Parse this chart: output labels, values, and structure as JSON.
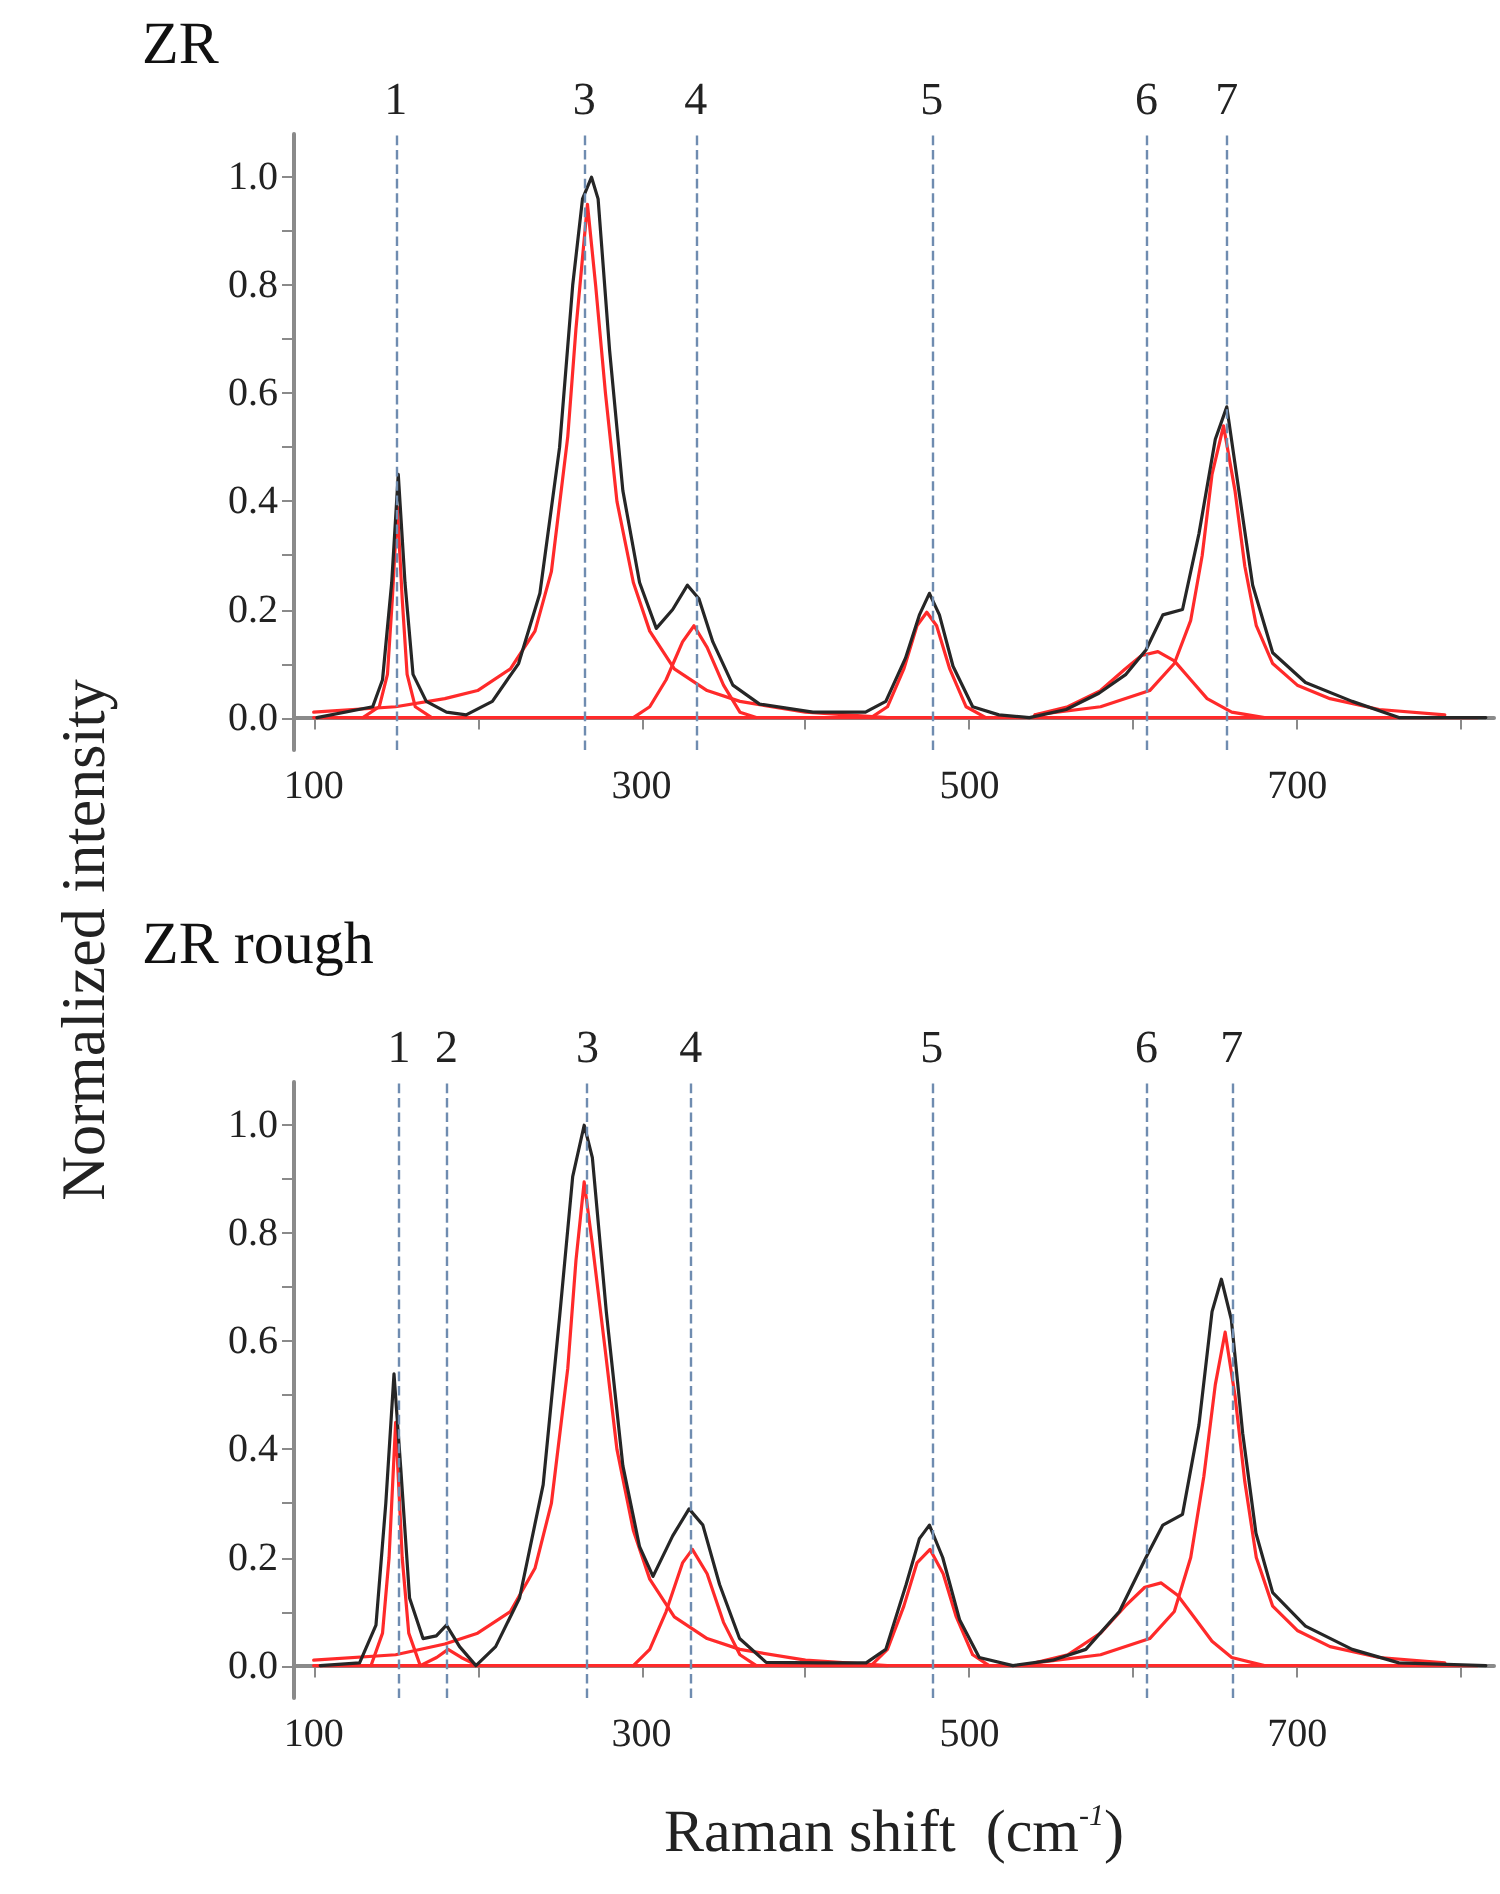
{
  "chart_data": [
    {
      "type": "line",
      "title": "ZR",
      "ylabel": "Normalized intensity",
      "marker": "none",
      "xlim": [
        88,
        820
      ],
      "xticks": [
        100,
        {
          "value": 200,
          "label": null
        },
        300,
        {
          "value": 400,
          "label": null
        },
        500,
        {
          "value": 600,
          "label": null
        },
        700,
        {
          "value": 800,
          "label": null
        }
      ],
      "ylim": [
        -0.06,
        1.08
      ],
      "yticks": [
        {
          "value": 0,
          "label": "0.0"
        },
        {
          "value": 0.1,
          "label": null
        },
        {
          "value": 0.2,
          "label": "0.2"
        },
        {
          "value": 0.3,
          "label": null
        },
        {
          "value": 0.4,
          "label": "0.4"
        },
        {
          "value": 0.5,
          "label": null
        },
        {
          "value": 0.6,
          "label": "0.6"
        },
        {
          "value": 0.7,
          "label": null
        },
        {
          "value": 0.8,
          "label": "0.8"
        },
        {
          "value": 0.9,
          "label": null
        },
        {
          "value": 1,
          "label": "1.0"
        }
      ],
      "ref_lines": [
        {
          "axis": "x",
          "value": 150,
          "color": "#6f8cb0",
          "line_style": "dashed"
        },
        {
          "axis": "x",
          "value": 265,
          "color": "#6f8cb0",
          "line_style": "dashed"
        },
        {
          "axis": "x",
          "value": 333,
          "color": "#6f8cb0",
          "line_style": "dashed"
        },
        {
          "axis": "x",
          "value": 477,
          "color": "#6f8cb0",
          "line_style": "dashed"
        },
        {
          "axis": "x",
          "value": 608,
          "color": "#6f8cb0",
          "line_style": "dashed"
        },
        {
          "axis": "x",
          "value": 657,
          "color": "#6f8cb0",
          "line_style": "dashed"
        }
      ],
      "annotations": [
        "1",
        "3",
        "4",
        "5",
        "6",
        "7"
      ],
      "series": [
        {
          "color": "#ff2a2a",
          "x": [
            100,
            810
          ],
          "values": [
            0,
            0
          ]
        },
        {
          "color": "#ff2a2a",
          "x": [
            130,
            140,
            145,
            148,
            151,
            154,
            157,
            162,
            172
          ],
          "values": [
            0,
            0.02,
            0.08,
            0.22,
            0.39,
            0.22,
            0.08,
            0.02,
            0
          ]
        },
        {
          "color": "#ff2a2a",
          "x": [
            100,
            150,
            180,
            200,
            220,
            235,
            245,
            255,
            260,
            267,
            272,
            278,
            285,
            295,
            305,
            320,
            340,
            360,
            400,
            450
          ],
          "values": [
            0.01,
            0.02,
            0.035,
            0.05,
            0.09,
            0.16,
            0.27,
            0.52,
            0.72,
            0.95,
            0.8,
            0.6,
            0.4,
            0.25,
            0.16,
            0.09,
            0.05,
            0.03,
            0.01,
            0
          ]
        },
        {
          "color": "#ff2a2a",
          "x": [
            295,
            305,
            315,
            325,
            332,
            340,
            350,
            360,
            370
          ],
          "values": [
            0,
            0.02,
            0.07,
            0.14,
            0.17,
            0.13,
            0.06,
            0.01,
            0
          ]
        },
        {
          "color": "#ff2a2a",
          "x": [
            440,
            450,
            460,
            468,
            474,
            480,
            488,
            498,
            510
          ],
          "values": [
            0,
            0.02,
            0.09,
            0.17,
            0.195,
            0.17,
            0.09,
            0.02,
            0
          ]
        },
        {
          "color": "#ff2a2a",
          "x": [
            540,
            560,
            580,
            595,
            605,
            615,
            625,
            635,
            645,
            660,
            680
          ],
          "values": [
            0.005,
            0.02,
            0.05,
            0.09,
            0.115,
            0.122,
            0.105,
            0.07,
            0.035,
            0.01,
            0
          ]
        },
        {
          "color": "#ff2a2a",
          "x": [
            540,
            580,
            610,
            625,
            635,
            642,
            648,
            655,
            662,
            668,
            675,
            685,
            700,
            720,
            750,
            790
          ],
          "values": [
            0.005,
            0.02,
            0.05,
            0.1,
            0.18,
            0.3,
            0.45,
            0.54,
            0.42,
            0.28,
            0.17,
            0.1,
            0.06,
            0.035,
            0.015,
            0.005
          ]
        },
        {
          "color": "#262626",
          "x": [
            102,
            136,
            142,
            147.6,
            151.6,
            155.7,
            160.6,
            168.7,
            181,
            193,
            209,
            225,
            238,
            250,
            258,
            264,
            269.5,
            273.5,
            280.5,
            288.6,
            298.8,
            309,
            319,
            328,
            335,
            343.5,
            355.7,
            372,
            404.5,
            436.6,
            449,
            461,
            469.5,
            475.6,
            481.7,
            490,
            502,
            518,
            536.6,
            559,
            579,
            595.5,
            607.7,
            618,
            630,
            640,
            650,
            657,
            664.6,
            672.8,
            685,
            705,
            733.5,
            762,
            802,
            815
          ],
          "values": [
            0,
            0.02,
            0.07,
            0.25,
            0.45,
            0.25,
            0.08,
            0.03,
            0.01,
            0.005,
            0.03,
            0.1,
            0.23,
            0.5,
            0.8,
            0.96,
            1,
            0.96,
            0.68,
            0.42,
            0.25,
            0.165,
            0.2,
            0.245,
            0.22,
            0.14,
            0.06,
            0.025,
            0.01,
            0.01,
            0.03,
            0.11,
            0.19,
            0.23,
            0.19,
            0.095,
            0.02,
            0.005,
            0,
            0.015,
            0.045,
            0.08,
            0.125,
            0.19,
            0.2,
            0.34,
            0.515,
            0.575,
            0.415,
            0.245,
            0.12,
            0.065,
            0.03,
            0,
            0,
            0
          ]
        }
      ]
    },
    {
      "type": "line",
      "title": "ZR rough",
      "xlabel": "Raman shift  (cm$^{-1}$)",
      "marker": "none",
      "xlim": [
        88,
        820
      ],
      "xticks": [
        100,
        {
          "value": 200,
          "label": null
        },
        300,
        {
          "value": 400,
          "label": null
        },
        500,
        {
          "value": 600,
          "label": null
        },
        700,
        {
          "value": 800,
          "label": null
        }
      ],
      "ylim": [
        -0.06,
        1.08
      ],
      "yticks": [
        {
          "value": 0,
          "label": "0.0"
        },
        {
          "value": 0.1,
          "label": null
        },
        {
          "value": 0.2,
          "label": "0.2"
        },
        {
          "value": 0.3,
          "label": null
        },
        {
          "value": 0.4,
          "label": "0.4"
        },
        {
          "value": 0.5,
          "label": null
        },
        {
          "value": 0.6,
          "label": "0.6"
        },
        {
          "value": 0.7,
          "label": null
        },
        {
          "value": 0.8,
          "label": "0.8"
        },
        {
          "value": 0.9,
          "label": null
        },
        {
          "value": 1,
          "label": "1.0"
        }
      ],
      "ref_lines": [
        {
          "axis": "x",
          "value": 152,
          "color": "#6f8cb0",
          "line_style": "dashed"
        },
        {
          "axis": "x",
          "value": 181,
          "color": "#6f8cb0",
          "line_style": "dashed"
        },
        {
          "axis": "x",
          "value": 267,
          "color": "#6f8cb0",
          "line_style": "dashed"
        },
        {
          "axis": "x",
          "value": 330,
          "color": "#6f8cb0",
          "line_style": "dashed"
        },
        {
          "axis": "x",
          "value": 477,
          "color": "#6f8cb0",
          "line_style": "dashed"
        },
        {
          "axis": "x",
          "value": 608,
          "color": "#6f8cb0",
          "line_style": "dashed"
        },
        {
          "axis": "x",
          "value": 660,
          "color": "#6f8cb0",
          "line_style": "dashed"
        }
      ],
      "annotations": [
        "1",
        "2",
        "3",
        "4",
        "5",
        "6",
        "7"
      ],
      "series": [
        {
          "color": "#ff2a2a",
          "x": [
            100,
            810
          ],
          "values": [
            0,
            0
          ]
        },
        {
          "color": "#ff2a2a",
          "x": [
            135,
            142,
            146,
            150,
            154,
            158,
            165
          ],
          "values": [
            0,
            0.06,
            0.2,
            0.45,
            0.2,
            0.06,
            0
          ]
        },
        {
          "color": "#ff2a2a",
          "x": [
            165,
            175,
            182,
            190,
            200
          ],
          "values": [
            0,
            0.015,
            0.03,
            0.015,
            0
          ]
        },
        {
          "color": "#ff2a2a",
          "x": [
            100,
            150,
            180,
            200,
            220,
            235,
            245,
            255,
            260,
            265,
            270,
            278,
            285,
            295,
            305,
            320,
            340,
            360,
            400,
            450
          ],
          "values": [
            0.01,
            0.02,
            0.04,
            0.06,
            0.1,
            0.18,
            0.3,
            0.55,
            0.75,
            0.895,
            0.78,
            0.58,
            0.4,
            0.25,
            0.16,
            0.09,
            0.05,
            0.03,
            0.01,
            0
          ]
        },
        {
          "color": "#ff2a2a",
          "x": [
            295,
            305,
            315,
            325,
            331,
            340,
            350,
            360,
            370
          ],
          "values": [
            0,
            0.03,
            0.1,
            0.19,
            0.215,
            0.17,
            0.08,
            0.02,
            0
          ]
        },
        {
          "color": "#ff2a2a",
          "x": [
            440,
            450,
            460,
            468,
            476,
            484,
            492,
            502,
            512
          ],
          "values": [
            0,
            0.03,
            0.11,
            0.19,
            0.215,
            0.17,
            0.09,
            0.02,
            0
          ]
        },
        {
          "color": "#ff2a2a",
          "x": [
            540,
            560,
            580,
            595,
            607,
            617,
            627,
            637,
            648,
            660,
            680
          ],
          "values": [
            0.005,
            0.02,
            0.06,
            0.11,
            0.145,
            0.153,
            0.13,
            0.09,
            0.045,
            0.015,
            0
          ]
        },
        {
          "color": "#ff2a2a",
          "x": [
            540,
            580,
            610,
            625,
            635,
            643,
            650,
            656,
            662,
            668,
            675,
            685,
            700,
            720,
            750,
            790
          ],
          "values": [
            0.005,
            0.02,
            0.05,
            0.1,
            0.2,
            0.35,
            0.52,
            0.617,
            0.5,
            0.34,
            0.2,
            0.11,
            0.065,
            0.035,
            0.015,
            0.005
          ]
        },
        {
          "color": "#262626",
          "x": [
            104,
            128,
            138,
            144,
            149,
            153,
            158.5,
            166.7,
            174.8,
            181,
            189,
            199,
            211,
            225.6,
            240,
            250,
            258,
            265,
            270,
            278.5,
            288.6,
            298.8,
            307,
            319,
            329,
            337.4,
            347.6,
            359.8,
            376,
            408.5,
            437,
            449,
            461.4,
            469.5,
            475.6,
            483.7,
            494,
            506,
            526.5,
            550.8,
            571,
            591.5,
            607.7,
            618,
            630,
            640,
            648,
            653.7,
            659.8,
            666.7,
            674.8,
            685,
            705,
            733.5,
            762,
            815
          ],
          "values": [
            0,
            0.005,
            0.075,
            0.3,
            0.54,
            0.37,
            0.125,
            0.05,
            0.055,
            0.075,
            0.035,
            0,
            0.035,
            0.125,
            0.335,
            0.645,
            0.905,
            1,
            0.94,
            0.655,
            0.37,
            0.22,
            0.165,
            0.24,
            0.29,
            0.26,
            0.15,
            0.05,
            0.006,
            0.005,
            0.005,
            0.03,
            0.15,
            0.235,
            0.26,
            0.2,
            0.085,
            0.015,
            0,
            0.01,
            0.03,
            0.1,
            0.2,
            0.26,
            0.28,
            0.445,
            0.655,
            0.715,
            0.64,
            0.43,
            0.245,
            0.135,
            0.073,
            0.03,
            0.005,
            0
          ]
        }
      ]
    }
  ]
}
